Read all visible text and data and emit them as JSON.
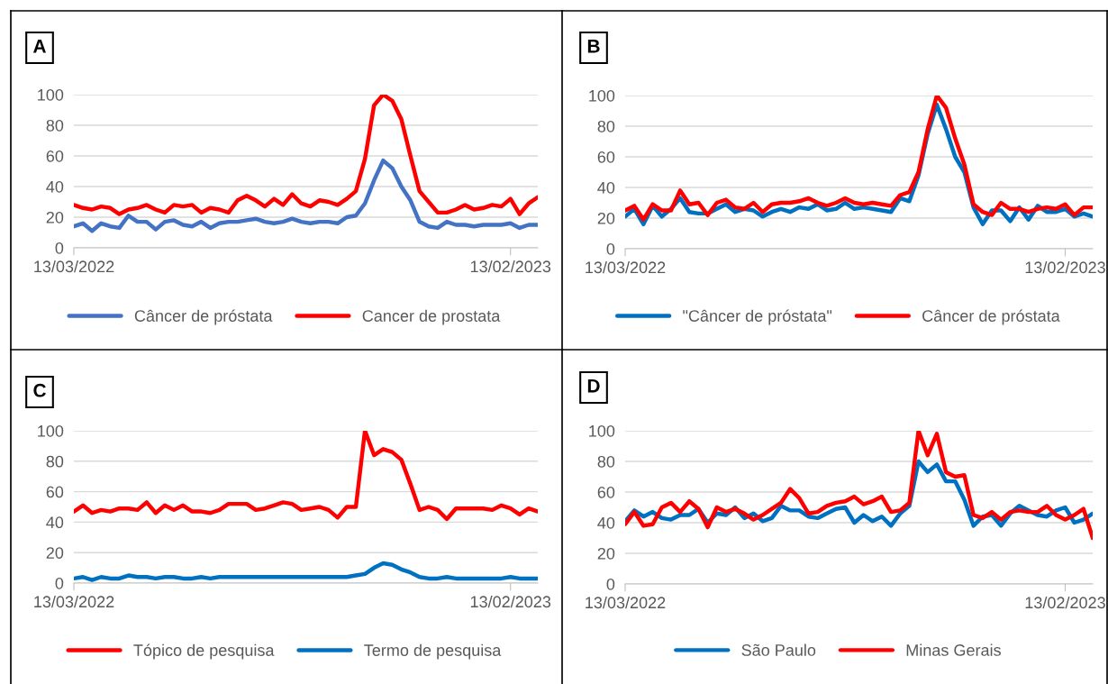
{
  "chart_data": [
    {
      "type": "line",
      "title": "A",
      "categories": [
        "13/03/2022",
        null,
        null,
        null,
        null,
        null,
        null,
        null,
        null,
        null,
        null,
        null,
        null,
        null,
        null,
        null,
        null,
        null,
        null,
        null,
        null,
        null,
        null,
        null,
        null,
        null,
        null,
        null,
        null,
        null,
        null,
        null,
        null,
        null,
        null,
        null,
        null,
        null,
        null,
        null,
        null,
        null,
        null,
        null,
        null,
        null,
        null,
        null,
        "13/02/2023",
        null,
        null,
        null
      ],
      "ylim": [
        0,
        100
      ],
      "yticks": [
        0,
        20,
        40,
        60,
        80,
        100
      ],
      "grid": "y",
      "legend": "bottom",
      "marker": "none",
      "line_style": "solid",
      "series": [
        {
          "name": "Câncer de próstata",
          "color": "#4472c4",
          "values": [
            14,
            16,
            11,
            16,
            14,
            13,
            21,
            17,
            17,
            12,
            17,
            18,
            15,
            14,
            17,
            13,
            16,
            17,
            17,
            18,
            19,
            17,
            16,
            17,
            19,
            17,
            16,
            17,
            17,
            16,
            20,
            21,
            29,
            44,
            57,
            52,
            40,
            31,
            17,
            14,
            13,
            17,
            15,
            15,
            14,
            15,
            15,
            15,
            16,
            13,
            15,
            15
          ]
        },
        {
          "name": "Cancer de prostata",
          "color": "#ff0000",
          "values": [
            28,
            26,
            25,
            27,
            26,
            22,
            25,
            26,
            28,
            25,
            23,
            28,
            27,
            28,
            23,
            26,
            25,
            23,
            31,
            34,
            31,
            27,
            32,
            28,
            35,
            29,
            27,
            31,
            30,
            28,
            32,
            37,
            58,
            93,
            100,
            96,
            84,
            60,
            37,
            30,
            23,
            23,
            25,
            28,
            25,
            26,
            28,
            27,
            32,
            22,
            29,
            33
          ]
        }
      ]
    },
    {
      "type": "line",
      "title": "B",
      "categories": [
        "13/03/2022",
        null,
        null,
        null,
        null,
        null,
        null,
        null,
        null,
        null,
        null,
        null,
        null,
        null,
        null,
        null,
        null,
        null,
        null,
        null,
        null,
        null,
        null,
        null,
        null,
        null,
        null,
        null,
        null,
        null,
        null,
        null,
        null,
        null,
        null,
        null,
        null,
        null,
        null,
        null,
        null,
        null,
        null,
        null,
        null,
        null,
        null,
        null,
        "13/02/2023",
        null,
        null,
        null
      ],
      "ylim": [
        0,
        100
      ],
      "yticks": [
        0,
        20,
        40,
        60,
        80,
        100
      ],
      "grid": "y",
      "legend": "bottom",
      "marker": "none",
      "line_style": "solid",
      "series": [
        {
          "name": "\"Câncer de próstata\"",
          "color": "#0070c0",
          "values": [
            21,
            26,
            16,
            28,
            21,
            26,
            33,
            24,
            23,
            23,
            26,
            29,
            24,
            26,
            25,
            21,
            24,
            26,
            24,
            27,
            26,
            29,
            25,
            26,
            30,
            26,
            27,
            26,
            25,
            24,
            33,
            31,
            48,
            75,
            94,
            78,
            60,
            50,
            27,
            16,
            25,
            25,
            18,
            27,
            19,
            28,
            24,
            24,
            26,
            21,
            23,
            21
          ]
        },
        {
          "name": "Câncer de próstata",
          "color": "#ff0000",
          "values": [
            25,
            28,
            19,
            29,
            25,
            25,
            38,
            29,
            30,
            22,
            30,
            32,
            27,
            26,
            30,
            24,
            29,
            30,
            30,
            31,
            33,
            30,
            28,
            30,
            33,
            30,
            29,
            30,
            29,
            28,
            35,
            37,
            50,
            78,
            100,
            92,
            72,
            55,
            29,
            24,
            22,
            30,
            26,
            26,
            24,
            26,
            27,
            26,
            29,
            22,
            27,
            27
          ]
        }
      ]
    },
    {
      "type": "line",
      "title": "C",
      "categories": [
        "13/03/2022",
        null,
        null,
        null,
        null,
        null,
        null,
        null,
        null,
        null,
        null,
        null,
        null,
        null,
        null,
        null,
        null,
        null,
        null,
        null,
        null,
        null,
        null,
        null,
        null,
        null,
        null,
        null,
        null,
        null,
        null,
        null,
        null,
        null,
        null,
        null,
        null,
        null,
        null,
        null,
        null,
        null,
        null,
        null,
        null,
        null,
        null,
        null,
        "13/02/2023",
        null,
        null,
        null
      ],
      "ylim": [
        0,
        100
      ],
      "yticks": [
        0,
        20,
        40,
        60,
        80,
        100
      ],
      "grid": "y",
      "legend": "bottom",
      "marker": "none",
      "line_style": "solid",
      "series": [
        {
          "name": "Tópico de pesquisa",
          "color": "#ff0000",
          "values": [
            47,
            51,
            46,
            48,
            47,
            49,
            49,
            48,
            53,
            46,
            51,
            48,
            51,
            47,
            47,
            46,
            48,
            52,
            52,
            52,
            48,
            49,
            51,
            53,
            52,
            48,
            49,
            50,
            48,
            43,
            50,
            50,
            100,
            84,
            88,
            86,
            81,
            65,
            48,
            50,
            48,
            42,
            49,
            49,
            49,
            49,
            48,
            51,
            49,
            45,
            49,
            47
          ]
        },
        {
          "name": "Termo de pesquisa",
          "color": "#0070c0",
          "values": [
            3,
            4,
            2,
            4,
            3,
            3,
            5,
            4,
            4,
            3,
            4,
            4,
            3,
            3,
            4,
            3,
            4,
            4,
            4,
            4,
            4,
            4,
            4,
            4,
            4,
            4,
            4,
            4,
            4,
            4,
            4,
            5,
            6,
            10,
            13,
            12,
            9,
            7,
            4,
            3,
            3,
            4,
            3,
            3,
            3,
            3,
            3,
            3,
            4,
            3,
            3,
            3
          ]
        }
      ]
    },
    {
      "type": "line",
      "title": "D",
      "categories": [
        "13/03/2022",
        null,
        null,
        null,
        null,
        null,
        null,
        null,
        null,
        null,
        null,
        null,
        null,
        null,
        null,
        null,
        null,
        null,
        null,
        null,
        null,
        null,
        null,
        null,
        null,
        null,
        null,
        null,
        null,
        null,
        null,
        null,
        null,
        null,
        null,
        null,
        null,
        null,
        null,
        null,
        null,
        null,
        null,
        null,
        null,
        null,
        null,
        null,
        "13/02/2023",
        null,
        null,
        null
      ],
      "ylim": [
        0,
        100
      ],
      "yticks": [
        0,
        20,
        40,
        60,
        80,
        100
      ],
      "grid": "y",
      "legend": "bottom",
      "marker": "none",
      "line_style": "solid",
      "series": [
        {
          "name": "São Paulo",
          "color": "#0070c0",
          "values": [
            41,
            48,
            44,
            47,
            43,
            42,
            45,
            45,
            49,
            40,
            46,
            45,
            50,
            43,
            46,
            41,
            43,
            51,
            48,
            48,
            44,
            43,
            46,
            49,
            50,
            40,
            45,
            41,
            44,
            38,
            46,
            51,
            80,
            73,
            78,
            67,
            67,
            55,
            38,
            44,
            45,
            38,
            46,
            51,
            48,
            45,
            44,
            48,
            50,
            40,
            42,
            46
          ]
        },
        {
          "name": "Minas Gerais",
          "color": "#ff0000",
          "values": [
            39,
            47,
            38,
            39,
            50,
            53,
            47,
            54,
            49,
            37,
            50,
            47,
            49,
            46,
            42,
            45,
            49,
            53,
            62,
            56,
            46,
            47,
            51,
            53,
            54,
            57,
            52,
            54,
            57,
            47,
            48,
            53,
            100,
            84,
            98,
            73,
            70,
            71,
            45,
            43,
            47,
            42,
            47,
            48,
            47,
            47,
            51,
            45,
            42,
            45,
            49,
            30
          ]
        }
      ]
    }
  ]
}
